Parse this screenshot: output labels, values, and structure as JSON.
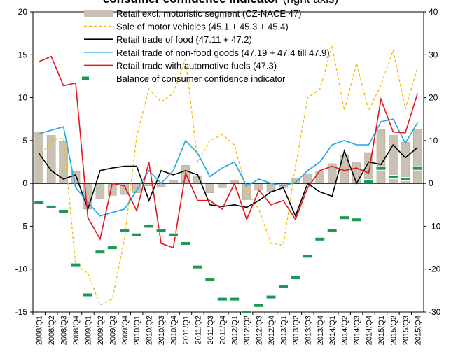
{
  "chart_data": {
    "type": "combo",
    "title": "consumer confidence indicator",
    "title_note": "(right axis)",
    "categories": [
      "2008/Q1",
      "2008/Q2",
      "2008/Q3",
      "2008/Q4",
      "2009/Q1",
      "2009/Q2",
      "2009/Q3",
      "2009/Q4",
      "2010/Q1",
      "2010/Q2",
      "2010/Q3",
      "2010/Q4",
      "2011/Q1",
      "2011/Q2",
      "2011/Q3",
      "2011/Q4",
      "2012/Q1",
      "2012/Q2",
      "2012/Q3",
      "2012/Q4",
      "2013/Q1",
      "2013/Q2",
      "2013/Q3",
      "2013/Q4",
      "2014/Q1",
      "2014/Q2",
      "2014/Q3",
      "2014/Q4",
      "2015/Q1",
      "2015/Q2",
      "2015/Q3",
      "2015/Q4"
    ],
    "ylim": [
      -15,
      20
    ],
    "yticks": [
      -15,
      -10,
      -5,
      0,
      5,
      10,
      15,
      20
    ],
    "y2lim": [
      -30,
      40
    ],
    "y2ticks": [
      -30,
      -20,
      -10,
      0,
      10,
      20,
      30,
      40
    ],
    "series": [
      {
        "name": "Retail excl. motoristic segment (CZ-NACE 47)",
        "kind": "bar",
        "color": "#c9c2b3",
        "values": [
          6,
          5.6,
          4.9,
          1.4,
          -3,
          -1.8,
          -1.4,
          -1.3,
          -1.1,
          -0.3,
          -0.4,
          0.3,
          2.1,
          0.9,
          -1.1,
          -0.5,
          0.3,
          -1.9,
          -0.8,
          -1,
          -0.5,
          0.6,
          1.1,
          1.4,
          2.3,
          3.3,
          2.5,
          3.6,
          6.3,
          5.6,
          4.8,
          6.3
        ]
      },
      {
        "name": "Sale of motor vehicles (45.1 + 45.3 + 45.4)",
        "kind": "dashed",
        "color": "#f5b800",
        "values": [
          3,
          5,
          5.3,
          -9.5,
          -10.5,
          -14.2,
          -13.5,
          -6.5,
          5.5,
          11,
          9.5,
          10.5,
          14.5,
          2.5,
          5,
          5.7,
          4.5,
          -1,
          -3,
          -7,
          -7.2,
          2,
          10,
          11,
          16,
          8.5,
          14,
          8.5,
          11.5,
          15.5,
          8.7,
          13.5
        ]
      },
      {
        "name": "Retail trade of food (47.11 + 47.2)",
        "kind": "line",
        "color": "#000000",
        "values": [
          3.5,
          1.5,
          0.5,
          1,
          -3,
          1.5,
          1.8,
          2,
          2,
          -2,
          1.5,
          1,
          1.5,
          1,
          -2.5,
          -2.7,
          -2.5,
          -2.8,
          -2,
          -1,
          -0.5,
          -3.8,
          0,
          -1,
          -1.5,
          3.8,
          0,
          2.5,
          2.2,
          4.5,
          3,
          4.2
        ]
      },
      {
        "name": "Retail trade of non-food goods (47.19 + 47.4 till 47.9)",
        "kind": "line",
        "color": "#1ea8e8",
        "values": [
          5.8,
          6.2,
          6.6,
          -0.5,
          -2.2,
          -3.8,
          -3.4,
          -3,
          -0.8,
          1.5,
          0,
          1.5,
          5,
          3.5,
          0.8,
          1.8,
          2.5,
          -0.3,
          0.5,
          0,
          -0.3,
          0.1,
          1.5,
          2.5,
          4.5,
          5,
          4.5,
          4.5,
          7.2,
          7.5,
          4.7,
          7.1
        ]
      },
      {
        "name": "Retail trade with automotive fuels (47.3)",
        "kind": "line",
        "color": "#e8141a",
        "values": [
          14.2,
          14.8,
          11.4,
          11.7,
          -4,
          -6.5,
          0,
          -0.3,
          -3.2,
          2.5,
          -7,
          -7.5,
          1.2,
          -2,
          -2,
          -3,
          0,
          -4.2,
          -0.8,
          -2.5,
          -2,
          -4.2,
          -0.5,
          1.5,
          2,
          1.5,
          1.8,
          1.2,
          9.8,
          6,
          5.9,
          10.5
        ]
      },
      {
        "name": "Balance of consumer confidence indicator",
        "kind": "dash",
        "axis": "y2",
        "color": "#1a9a50",
        "values": [
          -4.5,
          -5.5,
          -6.5,
          -19,
          -26,
          -16,
          -15,
          -11,
          -12,
          -10,
          -11,
          -12,
          -14,
          -19.5,
          -22.5,
          -27,
          -27,
          -30,
          -28.5,
          -26.5,
          -24,
          -22,
          -17,
          -13,
          -11,
          -8,
          -8.5,
          0.5,
          3.5,
          1.5,
          1,
          3.5
        ]
      }
    ]
  }
}
